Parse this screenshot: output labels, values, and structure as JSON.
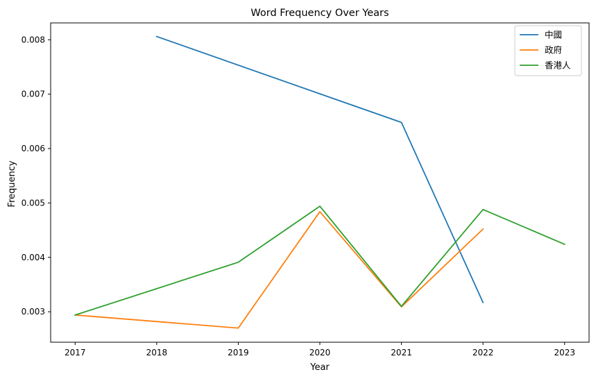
{
  "chart_data": {
    "type": "line",
    "title": "Word Frequency Over Years",
    "xlabel": "Year",
    "ylabel": "Frequency",
    "x": [
      2017,
      2018,
      2019,
      2020,
      2021,
      2022,
      2023
    ],
    "x_tick_labels": [
      "2017",
      "2018",
      "2019",
      "2020",
      "2021",
      "2022",
      "2023"
    ],
    "xlim": [
      2016.7,
      2023.3
    ],
    "y_ticks": [
      0.003,
      0.004,
      0.005,
      0.006,
      0.007,
      0.008
    ],
    "y_tick_labels": [
      "0.003",
      "0.004",
      "0.005",
      "0.006",
      "0.007",
      "0.008"
    ],
    "ylim": [
      0.00244,
      0.00831
    ],
    "grid": false,
    "legend_position": "top-right",
    "series": [
      {
        "name": "中國",
        "color": "#1f77b4",
        "points": [
          [
            2018,
            0.00806
          ],
          [
            2021,
            0.00648
          ],
          [
            2022,
            0.00317
          ]
        ]
      },
      {
        "name": "政府",
        "color": "#ff7f0e",
        "points": [
          [
            2017,
            0.00294
          ],
          [
            2019,
            0.0027
          ],
          [
            2020,
            0.00484
          ],
          [
            2021,
            0.00309
          ],
          [
            2022,
            0.00452
          ]
        ]
      },
      {
        "name": "香港人",
        "color": "#2ca02c",
        "points": [
          [
            2017,
            0.00294
          ],
          [
            2019,
            0.00391
          ],
          [
            2020,
            0.00494
          ],
          [
            2021,
            0.0031
          ],
          [
            2022,
            0.00488
          ],
          [
            2023,
            0.00424
          ]
        ]
      }
    ]
  }
}
